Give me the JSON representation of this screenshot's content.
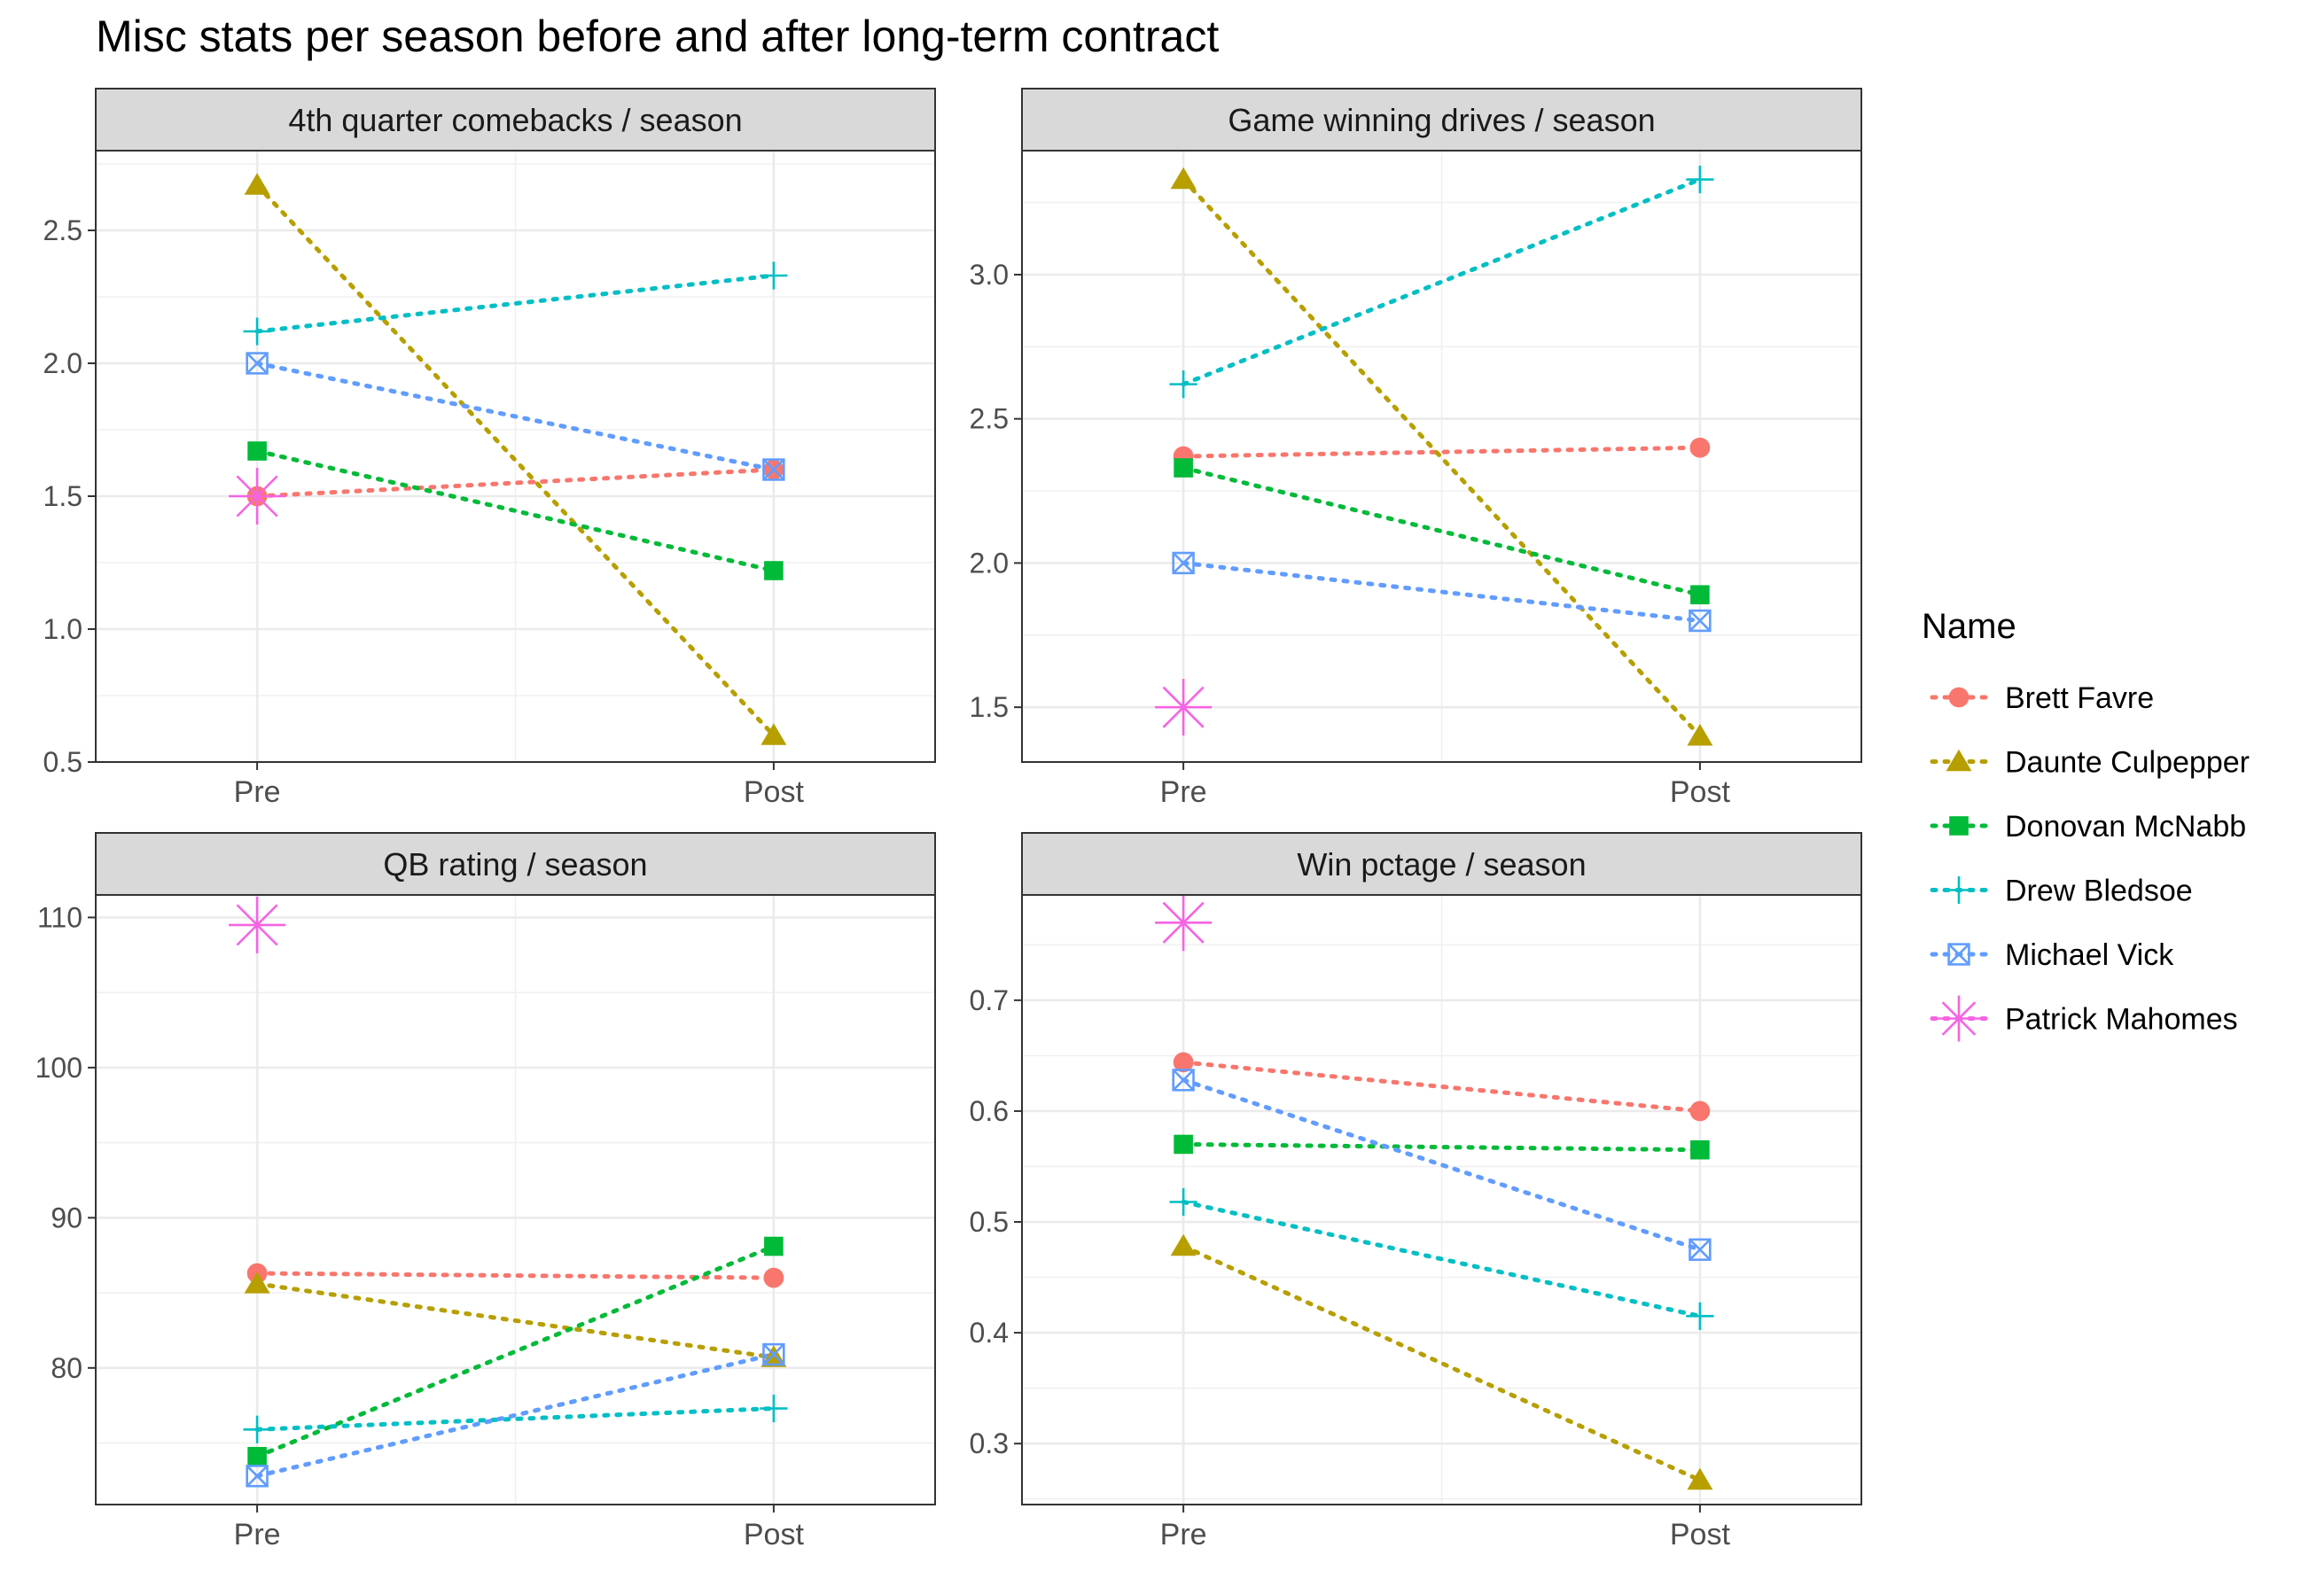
{
  "title": "Misc stats per season before and after long-term contract",
  "legend": {
    "title": "Name",
    "position": "right"
  },
  "series_styles": [
    {
      "name": "Brett Favre",
      "color": "#F8766D",
      "shape": "circle"
    },
    {
      "name": "Daunte Culpepper",
      "color": "#B79F00",
      "shape": "triangle"
    },
    {
      "name": "Donovan McNabb",
      "color": "#00BA38",
      "shape": "square"
    },
    {
      "name": "Drew Bledsoe",
      "color": "#00BFC4",
      "shape": "plus"
    },
    {
      "name": "Michael Vick",
      "color": "#619CFF",
      "shape": "square-cross"
    },
    {
      "name": "Patrick Mahomes",
      "color": "#F564E3",
      "shape": "asterisk"
    }
  ],
  "chart_data": [
    {
      "type": "line",
      "title": "4th quarter comebacks / season",
      "categories": [
        "Pre",
        "Post"
      ],
      "ylim": [
        0.5,
        2.8
      ],
      "yticks": [
        "0.5",
        "1.0",
        "1.5",
        "2.0",
        "2.5"
      ],
      "grid": true,
      "series": [
        {
          "name": "Brett Favre",
          "values": [
            1.5,
            1.6
          ]
        },
        {
          "name": "Daunte Culpepper",
          "values": [
            2.67,
            0.6
          ]
        },
        {
          "name": "Donovan McNabb",
          "values": [
            1.67,
            1.22
          ]
        },
        {
          "name": "Drew Bledsoe",
          "values": [
            2.12,
            2.33
          ]
        },
        {
          "name": "Michael Vick",
          "values": [
            2.0,
            1.6
          ]
        },
        {
          "name": "Patrick Mahomes",
          "values": [
            1.5,
            null
          ]
        }
      ]
    },
    {
      "type": "line",
      "title": "Game winning drives / season",
      "categories": [
        "Pre",
        "Post"
      ],
      "ylim": [
        1.31,
        3.43
      ],
      "yticks": [
        "1.5",
        "2.0",
        "2.5",
        "3.0"
      ],
      "grid": true,
      "series": [
        {
          "name": "Brett Favre",
          "values": [
            2.37,
            2.4
          ]
        },
        {
          "name": "Daunte Culpepper",
          "values": [
            3.33,
            1.4
          ]
        },
        {
          "name": "Donovan McNabb",
          "values": [
            2.33,
            1.89
          ]
        },
        {
          "name": "Drew Bledsoe",
          "values": [
            2.62,
            3.33
          ]
        },
        {
          "name": "Michael Vick",
          "values": [
            2.0,
            1.8
          ]
        },
        {
          "name": "Patrick Mahomes",
          "values": [
            1.5,
            null
          ]
        }
      ]
    },
    {
      "type": "line",
      "title": "QB rating / season",
      "categories": [
        "Pre",
        "Post"
      ],
      "ylim": [
        70.9,
        111.5
      ],
      "yticks": [
        "80",
        "90",
        "100",
        "110"
      ],
      "grid": true,
      "series": [
        {
          "name": "Brett Favre",
          "values": [
            86.3,
            86.0
          ]
        },
        {
          "name": "Daunte Culpepper",
          "values": [
            85.6,
            80.7
          ]
        },
        {
          "name": "Donovan McNabb",
          "values": [
            74.1,
            88.1
          ]
        },
        {
          "name": "Drew Bledsoe",
          "values": [
            75.9,
            77.3
          ]
        },
        {
          "name": "Michael Vick",
          "values": [
            72.8,
            80.9
          ]
        },
        {
          "name": "Patrick Mahomes",
          "values": [
            109.5,
            null
          ]
        }
      ]
    },
    {
      "type": "line",
      "title": "Win pctage / season",
      "categories": [
        "Pre",
        "Post"
      ],
      "ylim": [
        0.245,
        0.795
      ],
      "yticks": [
        "0.3",
        "0.4",
        "0.5",
        "0.6",
        "0.7"
      ],
      "grid": true,
      "series": [
        {
          "name": "Brett Favre",
          "values": [
            0.644,
            0.6
          ]
        },
        {
          "name": "Daunte Culpepper",
          "values": [
            0.478,
            0.267
          ]
        },
        {
          "name": "Donovan McNabb",
          "values": [
            0.57,
            0.565
          ]
        },
        {
          "name": "Drew Bledsoe",
          "values": [
            0.518,
            0.415
          ]
        },
        {
          "name": "Michael Vick",
          "values": [
            0.628,
            0.475
          ]
        },
        {
          "name": "Patrick Mahomes",
          "values": [
            0.77,
            null
          ]
        }
      ]
    }
  ]
}
